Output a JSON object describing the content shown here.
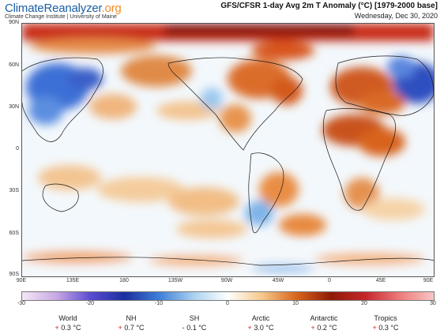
{
  "header": {
    "brand_part1": "Climate",
    "brand_part2": "Reanalyzer",
    "brand_part3": ".org",
    "brand_sub": "Climate Change Institute | University of Maine",
    "title": "GFS/CFSR 1-day Avg 2m T Anomaly (°C) [1979-2000 base]",
    "date": "Wednesday, Dec 30, 2020"
  },
  "map": {
    "lat_labels": [
      "90N",
      "60N",
      "30N",
      "0",
      "30S",
      "60S",
      "90S"
    ],
    "lon_labels": [
      "90E",
      "135E",
      "180",
      "135W",
      "90W",
      "45W",
      "0",
      "45E",
      "90E"
    ]
  },
  "colorbar": {
    "ticks": [
      "-30",
      "-20",
      "-10",
      "0",
      "10",
      "20",
      "30"
    ],
    "colors": [
      "#f4e8f6",
      "#c9a8e6",
      "#5a4bd0",
      "#1b2fa0",
      "#3f7fd8",
      "#a9d2f0",
      "#ffffff",
      "#f6c88a",
      "#d8651c",
      "#8f1a06",
      "#c4262a",
      "#ee7a7a",
      "#f7c6c6"
    ]
  },
  "stats": [
    {
      "name": "World",
      "sign": "+",
      "value": "0.3 °C"
    },
    {
      "name": "NH",
      "sign": "+",
      "value": "0.7 °C"
    },
    {
      "name": "SH",
      "sign": "-",
      "value": "0.1 °C"
    },
    {
      "name": "Arctic",
      "sign": "+",
      "value": "3.0 °C"
    },
    {
      "name": "Antarctic",
      "sign": "+",
      "value": "0.2 °C"
    },
    {
      "name": "Tropics",
      "sign": "+",
      "value": "0.3 °C"
    }
  ]
}
